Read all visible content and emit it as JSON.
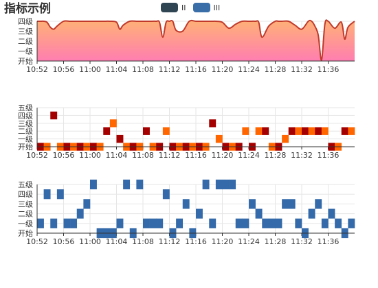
{
  "title": "指标示例",
  "legend": [
    {
      "label": "II",
      "color": "#2f4554"
    },
    {
      "label": "III",
      "color": "#3a6ea8"
    }
  ],
  "colors": {
    "area_top": "#ffb176",
    "area_bottom": "#ff7eb0",
    "line": "#c0392b",
    "red": "#a50000",
    "orange": "#ff6600",
    "blue": "#346aa9"
  },
  "chart_data": [
    {
      "type": "area",
      "categories": [
        "开始",
        "一级",
        "二级",
        "三级",
        "四级"
      ],
      "x_ticks": [
        "10:52",
        "10:56",
        "11:00",
        "11:04",
        "11:08",
        "11:12",
        "11:16",
        "11:20",
        "11:24",
        "11:28",
        "11:32",
        "11:36"
      ],
      "x_range_minutes": [
        0,
        48
      ],
      "ylim": [
        0,
        4
      ],
      "x": [
        0,
        0.5,
        1,
        1.5,
        2,
        2.5,
        3,
        4,
        5,
        6,
        7,
        8,
        9,
        10,
        11,
        12,
        12.5,
        13,
        14,
        15,
        16,
        17,
        18,
        18.5,
        19,
        19.5,
        20,
        20.5,
        21,
        22,
        23,
        24,
        25,
        26,
        26.5,
        27,
        28,
        29,
        30,
        31,
        32,
        33,
        33.5,
        34,
        35,
        36,
        36.5,
        37,
        38,
        39,
        40,
        41,
        41.5,
        42,
        42.5,
        43,
        43.5,
        44,
        45,
        46,
        46.5,
        47,
        48
      ],
      "values": [
        4,
        4,
        4,
        3.9,
        3.4,
        3.2,
        3.5,
        4,
        4,
        4,
        4,
        4,
        4,
        4,
        4,
        3.9,
        3.2,
        3.6,
        4,
        4,
        4,
        4,
        4,
        3.9,
        2.4,
        3.9,
        4,
        4,
        3.1,
        3,
        4,
        4,
        4,
        4,
        4,
        4,
        3.9,
        3.3,
        3.7,
        4,
        4,
        4,
        3.9,
        2.4,
        3.5,
        4,
        4,
        4,
        4,
        3.6,
        3.2,
        4,
        4,
        3.5,
        2.6,
        0.1,
        3.7,
        4,
        3.3,
        3.9,
        2.2,
        3.4,
        4
      ]
    },
    {
      "type": "heatmap",
      "categories": [
        "开始",
        "一级",
        "二级",
        "三级",
        "四级",
        "五级"
      ],
      "x_ticks": [
        "10:52",
        "10:56",
        "11:00",
        "11:04",
        "11:08",
        "11:12",
        "11:16",
        "11:20",
        "11:24",
        "11:28",
        "11:32",
        "11:36"
      ],
      "x_range_minutes": [
        0,
        48
      ],
      "cells": [
        {
          "t": 0,
          "level": 0,
          "c": "red"
        },
        {
          "t": 1,
          "level": 0,
          "c": "orange"
        },
        {
          "t": 2,
          "level": 4,
          "c": "red"
        },
        {
          "t": 3,
          "level": 0,
          "c": "orange"
        },
        {
          "t": 4,
          "level": 0,
          "c": "red"
        },
        {
          "t": 5,
          "level": 0,
          "c": "orange"
        },
        {
          "t": 6,
          "level": 0,
          "c": "red"
        },
        {
          "t": 7,
          "level": 0,
          "c": "orange"
        },
        {
          "t": 8,
          "level": 0,
          "c": "red"
        },
        {
          "t": 9,
          "level": 0,
          "c": "orange"
        },
        {
          "t": 10,
          "level": 2,
          "c": "red"
        },
        {
          "t": 11,
          "level": 3,
          "c": "orange"
        },
        {
          "t": 12,
          "level": 1,
          "c": "red"
        },
        {
          "t": 13,
          "level": 0,
          "c": "orange"
        },
        {
          "t": 14,
          "level": 0,
          "c": "red"
        },
        {
          "t": 15,
          "level": 0,
          "c": "orange"
        },
        {
          "t": 16,
          "level": 2,
          "c": "red"
        },
        {
          "t": 17,
          "level": 0,
          "c": "orange"
        },
        {
          "t": 18,
          "level": 0,
          "c": "red"
        },
        {
          "t": 19,
          "level": 2,
          "c": "orange"
        },
        {
          "t": 20,
          "level": 0,
          "c": "red"
        },
        {
          "t": 21,
          "level": 0,
          "c": "orange"
        },
        {
          "t": 22,
          "level": 0,
          "c": "red"
        },
        {
          "t": 23,
          "level": 0,
          "c": "orange"
        },
        {
          "t": 24,
          "level": 0,
          "c": "red"
        },
        {
          "t": 25,
          "level": 0,
          "c": "orange"
        },
        {
          "t": 26,
          "level": 3,
          "c": "red"
        },
        {
          "t": 27,
          "level": 1,
          "c": "orange"
        },
        {
          "t": 28,
          "level": 0,
          "c": "red"
        },
        {
          "t": 29,
          "level": 0,
          "c": "orange"
        },
        {
          "t": 30,
          "level": 0,
          "c": "red"
        },
        {
          "t": 31,
          "level": 2,
          "c": "orange"
        },
        {
          "t": 32,
          "level": 0,
          "c": "red"
        },
        {
          "t": 33,
          "level": 2,
          "c": "orange"
        },
        {
          "t": 34,
          "level": 2,
          "c": "red"
        },
        {
          "t": 35,
          "level": 0,
          "c": "orange"
        },
        {
          "t": 36,
          "level": 0,
          "c": "red"
        },
        {
          "t": 37,
          "level": 1,
          "c": "orange"
        },
        {
          "t": 38,
          "level": 2,
          "c": "red"
        },
        {
          "t": 39,
          "level": 2,
          "c": "orange"
        },
        {
          "t": 40,
          "level": 2,
          "c": "red"
        },
        {
          "t": 41,
          "level": 2,
          "c": "orange"
        },
        {
          "t": 42,
          "level": 2,
          "c": "red"
        },
        {
          "t": 43,
          "level": 2,
          "c": "orange"
        },
        {
          "t": 44,
          "level": 0,
          "c": "red"
        },
        {
          "t": 45,
          "level": 0,
          "c": "orange"
        },
        {
          "t": 46,
          "level": 2,
          "c": "red"
        },
        {
          "t": 47,
          "level": 2,
          "c": "orange"
        }
      ]
    },
    {
      "type": "heatmap",
      "categories": [
        "开始",
        "一级",
        "二级",
        "三级",
        "四级",
        "五级"
      ],
      "x_ticks": [
        "10:52",
        "10:56",
        "11:00",
        "11:04",
        "11:08",
        "11:12",
        "11:16",
        "11:20",
        "11:24",
        "11:28",
        "11:32",
        "11:36"
      ],
      "x_range_minutes": [
        0,
        48
      ],
      "cells": [
        {
          "t": 0,
          "level": 1
        },
        {
          "t": 1,
          "level": 4
        },
        {
          "t": 2,
          "level": 1
        },
        {
          "t": 3,
          "level": 4
        },
        {
          "t": 4,
          "level": 1
        },
        {
          "t": 5,
          "level": 1
        },
        {
          "t": 6,
          "level": 2
        },
        {
          "t": 7,
          "level": 3
        },
        {
          "t": 8,
          "level": 5
        },
        {
          "t": 9,
          "level": 0
        },
        {
          "t": 10,
          "level": 0
        },
        {
          "t": 11,
          "level": 0
        },
        {
          "t": 12,
          "level": 1
        },
        {
          "t": 13,
          "level": 5
        },
        {
          "t": 14,
          "level": 0
        },
        {
          "t": 15,
          "level": 5
        },
        {
          "t": 16,
          "level": 1
        },
        {
          "t": 17,
          "level": 1
        },
        {
          "t": 18,
          "level": 1
        },
        {
          "t": 19,
          "level": 4
        },
        {
          "t": 20,
          "level": 0
        },
        {
          "t": 21,
          "level": 1
        },
        {
          "t": 22,
          "level": 3
        },
        {
          "t": 23,
          "level": 0
        },
        {
          "t": 24,
          "level": 2
        },
        {
          "t": 25,
          "level": 5
        },
        {
          "t": 26,
          "level": 1
        },
        {
          "t": 27,
          "level": 5
        },
        {
          "t": 28,
          "level": 5
        },
        {
          "t": 29,
          "level": 5
        },
        {
          "t": 30,
          "level": 1
        },
        {
          "t": 31,
          "level": 1
        },
        {
          "t": 32,
          "level": 3
        },
        {
          "t": 33,
          "level": 2
        },
        {
          "t": 34,
          "level": 1
        },
        {
          "t": 35,
          "level": 1
        },
        {
          "t": 36,
          "level": 1
        },
        {
          "t": 37,
          "level": 3
        },
        {
          "t": 38,
          "level": 3
        },
        {
          "t": 39,
          "level": 1
        },
        {
          "t": 40,
          "level": 0
        },
        {
          "t": 41,
          "level": 2
        },
        {
          "t": 42,
          "level": 3
        },
        {
          "t": 43,
          "level": 1
        },
        {
          "t": 44,
          "level": 2
        },
        {
          "t": 45,
          "level": 1
        },
        {
          "t": 46,
          "level": 0
        },
        {
          "t": 47,
          "level": 1
        }
      ]
    }
  ]
}
